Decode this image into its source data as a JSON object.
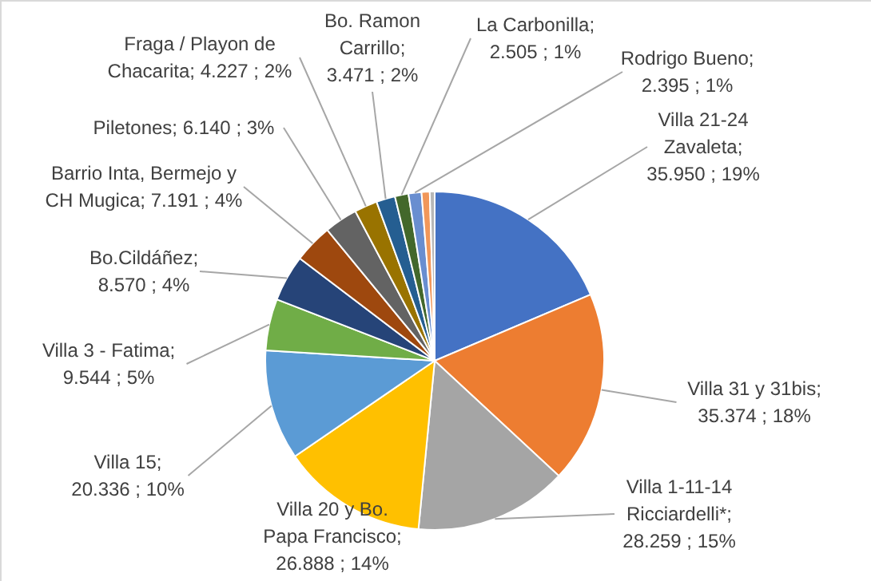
{
  "chart_data": {
    "type": "pie",
    "categories": [
      "Villa 21-24 Zavaleta",
      "Villa 31 y 31bis",
      "Villa 1-11-14 Ricciardelli*",
      "Villa 20 y Bo. Papa Francisco",
      "Villa 15",
      "Villa 3 - Fatima",
      "Bo.Cildáñez",
      "Barrio Inta, Bermejo y CH Mugica",
      "Piletones",
      "Fraga / Playon de Chacarita",
      "Bo. Ramon Carrillo",
      "La Carbonilla",
      "Rodrigo Bueno",
      null,
      null
    ],
    "values": [
      35950,
      35374,
      28259,
      26888,
      20336,
      9544,
      8570,
      7191,
      6140,
      4227,
      3471,
      2505,
      2395,
      1500,
      900
    ],
    "value_labels": [
      "; 35.950 ; 19%",
      "; 35.374 ; 18%",
      "; 28.259 ; 15%",
      "; 26.888 ; 14%",
      ";  20.336 ; 10%",
      "; 9.544 ; 5%",
      "; 8.570 ; 4%",
      ";  7.191 ; 4%",
      ";  6.140 ; 3%",
      ";  4.227 ; 2%",
      "; 3.471 ; 2%",
      "; 2.505 ; 1%",
      "; 2.395 ; 1%",
      null,
      null
    ],
    "colors": [
      "#4472c4",
      "#ed7d31",
      "#a5a5a5",
      "#ffc000",
      "#5b9bd5",
      "#70ad47",
      "#264478",
      "#9e480e",
      "#636363",
      "#997300",
      "#255e91",
      "#43682b",
      "#698ed0",
      "#f1975a",
      "#b7b7b7"
    ],
    "legend": false
  }
}
